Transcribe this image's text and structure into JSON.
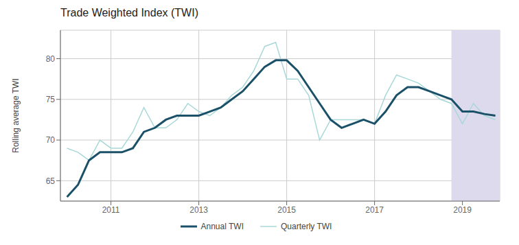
{
  "chart_data": {
    "type": "line",
    "title": "Trade Weighted Index (TWI)",
    "ylabel": "Rolling average TWI",
    "x": [
      2010.0,
      2010.25,
      2010.5,
      2010.75,
      2011.0,
      2011.25,
      2011.5,
      2011.75,
      2012.0,
      2012.25,
      2012.5,
      2012.75,
      2013.0,
      2013.25,
      2013.5,
      2013.75,
      2014.0,
      2014.25,
      2014.5,
      2014.75,
      2015.0,
      2015.25,
      2015.5,
      2015.75,
      2016.0,
      2016.25,
      2016.5,
      2016.75,
      2017.0,
      2017.25,
      2017.5,
      2017.75,
      2018.0,
      2018.25,
      2018.5,
      2018.75,
      2019.0,
      2019.25,
      2019.5,
      2019.75
    ],
    "series": [
      {
        "name": "Annual TWI",
        "color": "#1a5068",
        "values": [
          63.0,
          64.5,
          67.5,
          68.5,
          68.5,
          68.5,
          69.0,
          71.0,
          71.5,
          72.5,
          73.0,
          73.0,
          73.0,
          73.5,
          74.0,
          75.0,
          76.0,
          77.5,
          79.0,
          79.8,
          79.8,
          78.5,
          76.5,
          74.5,
          72.5,
          71.5,
          72.0,
          72.5,
          72.0,
          73.5,
          75.5,
          76.5,
          76.5,
          76.0,
          75.5,
          75.0,
          73.5,
          73.5,
          73.2,
          73.0
        ]
      },
      {
        "name": "Quarterly TWI",
        "color": "#a8d8d8",
        "values": [
          69.0,
          68.5,
          67.5,
          70.0,
          69.0,
          69.0,
          71.0,
          74.0,
          71.5,
          71.5,
          72.5,
          74.5,
          73.5,
          73.0,
          74.0,
          75.5,
          76.5,
          78.5,
          81.5,
          82.0,
          77.5,
          77.5,
          75.5,
          70.0,
          72.5,
          72.5,
          72.5,
          72.5,
          72.0,
          75.5,
          78.0,
          77.5,
          77.0,
          76.0,
          75.0,
          74.5,
          72.0,
          74.5,
          73.0,
          72.5
        ]
      }
    ],
    "xlim": [
      2009.85,
      2019.85
    ],
    "xticks": [
      2011,
      2013,
      2015,
      2017,
      2019
    ],
    "ylim": [
      62.5,
      83.5
    ],
    "yticks": [
      65,
      70,
      75,
      80
    ],
    "grid": true,
    "legend": "bottom",
    "shaded_region": {
      "x_start": 2018.75,
      "x_end": 2019.85,
      "color": "#dddaed"
    }
  }
}
